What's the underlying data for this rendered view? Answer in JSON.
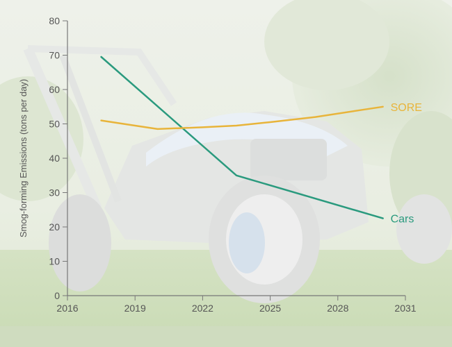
{
  "chart_data": {
    "type": "line",
    "title": "",
    "xlabel": "",
    "ylabel": "Smog-forming Emissions (tons per day)",
    "xlim": [
      2016,
      2031
    ],
    "ylim": [
      0,
      80
    ],
    "xticks": [
      2016,
      2019,
      2022,
      2025,
      2028,
      2031
    ],
    "yticks": [
      0,
      10,
      20,
      30,
      40,
      50,
      60,
      70,
      80
    ],
    "grid": false,
    "legend": "inline labels at line ends",
    "series": [
      {
        "name": "Cars",
        "color": "#2a9a7e",
        "x": [
          2017.5,
          2023.5,
          2030
        ],
        "y": [
          69.5,
          35,
          22.5
        ]
      },
      {
        "name": "SORE",
        "color": "#e8b43a",
        "x": [
          2017.5,
          2019,
          2020,
          2022,
          2023.5,
          2025,
          2027,
          2029,
          2030
        ],
        "y": [
          51,
          49.5,
          48.5,
          49,
          49.5,
          50.5,
          52,
          54,
          55
        ]
      }
    ]
  }
}
